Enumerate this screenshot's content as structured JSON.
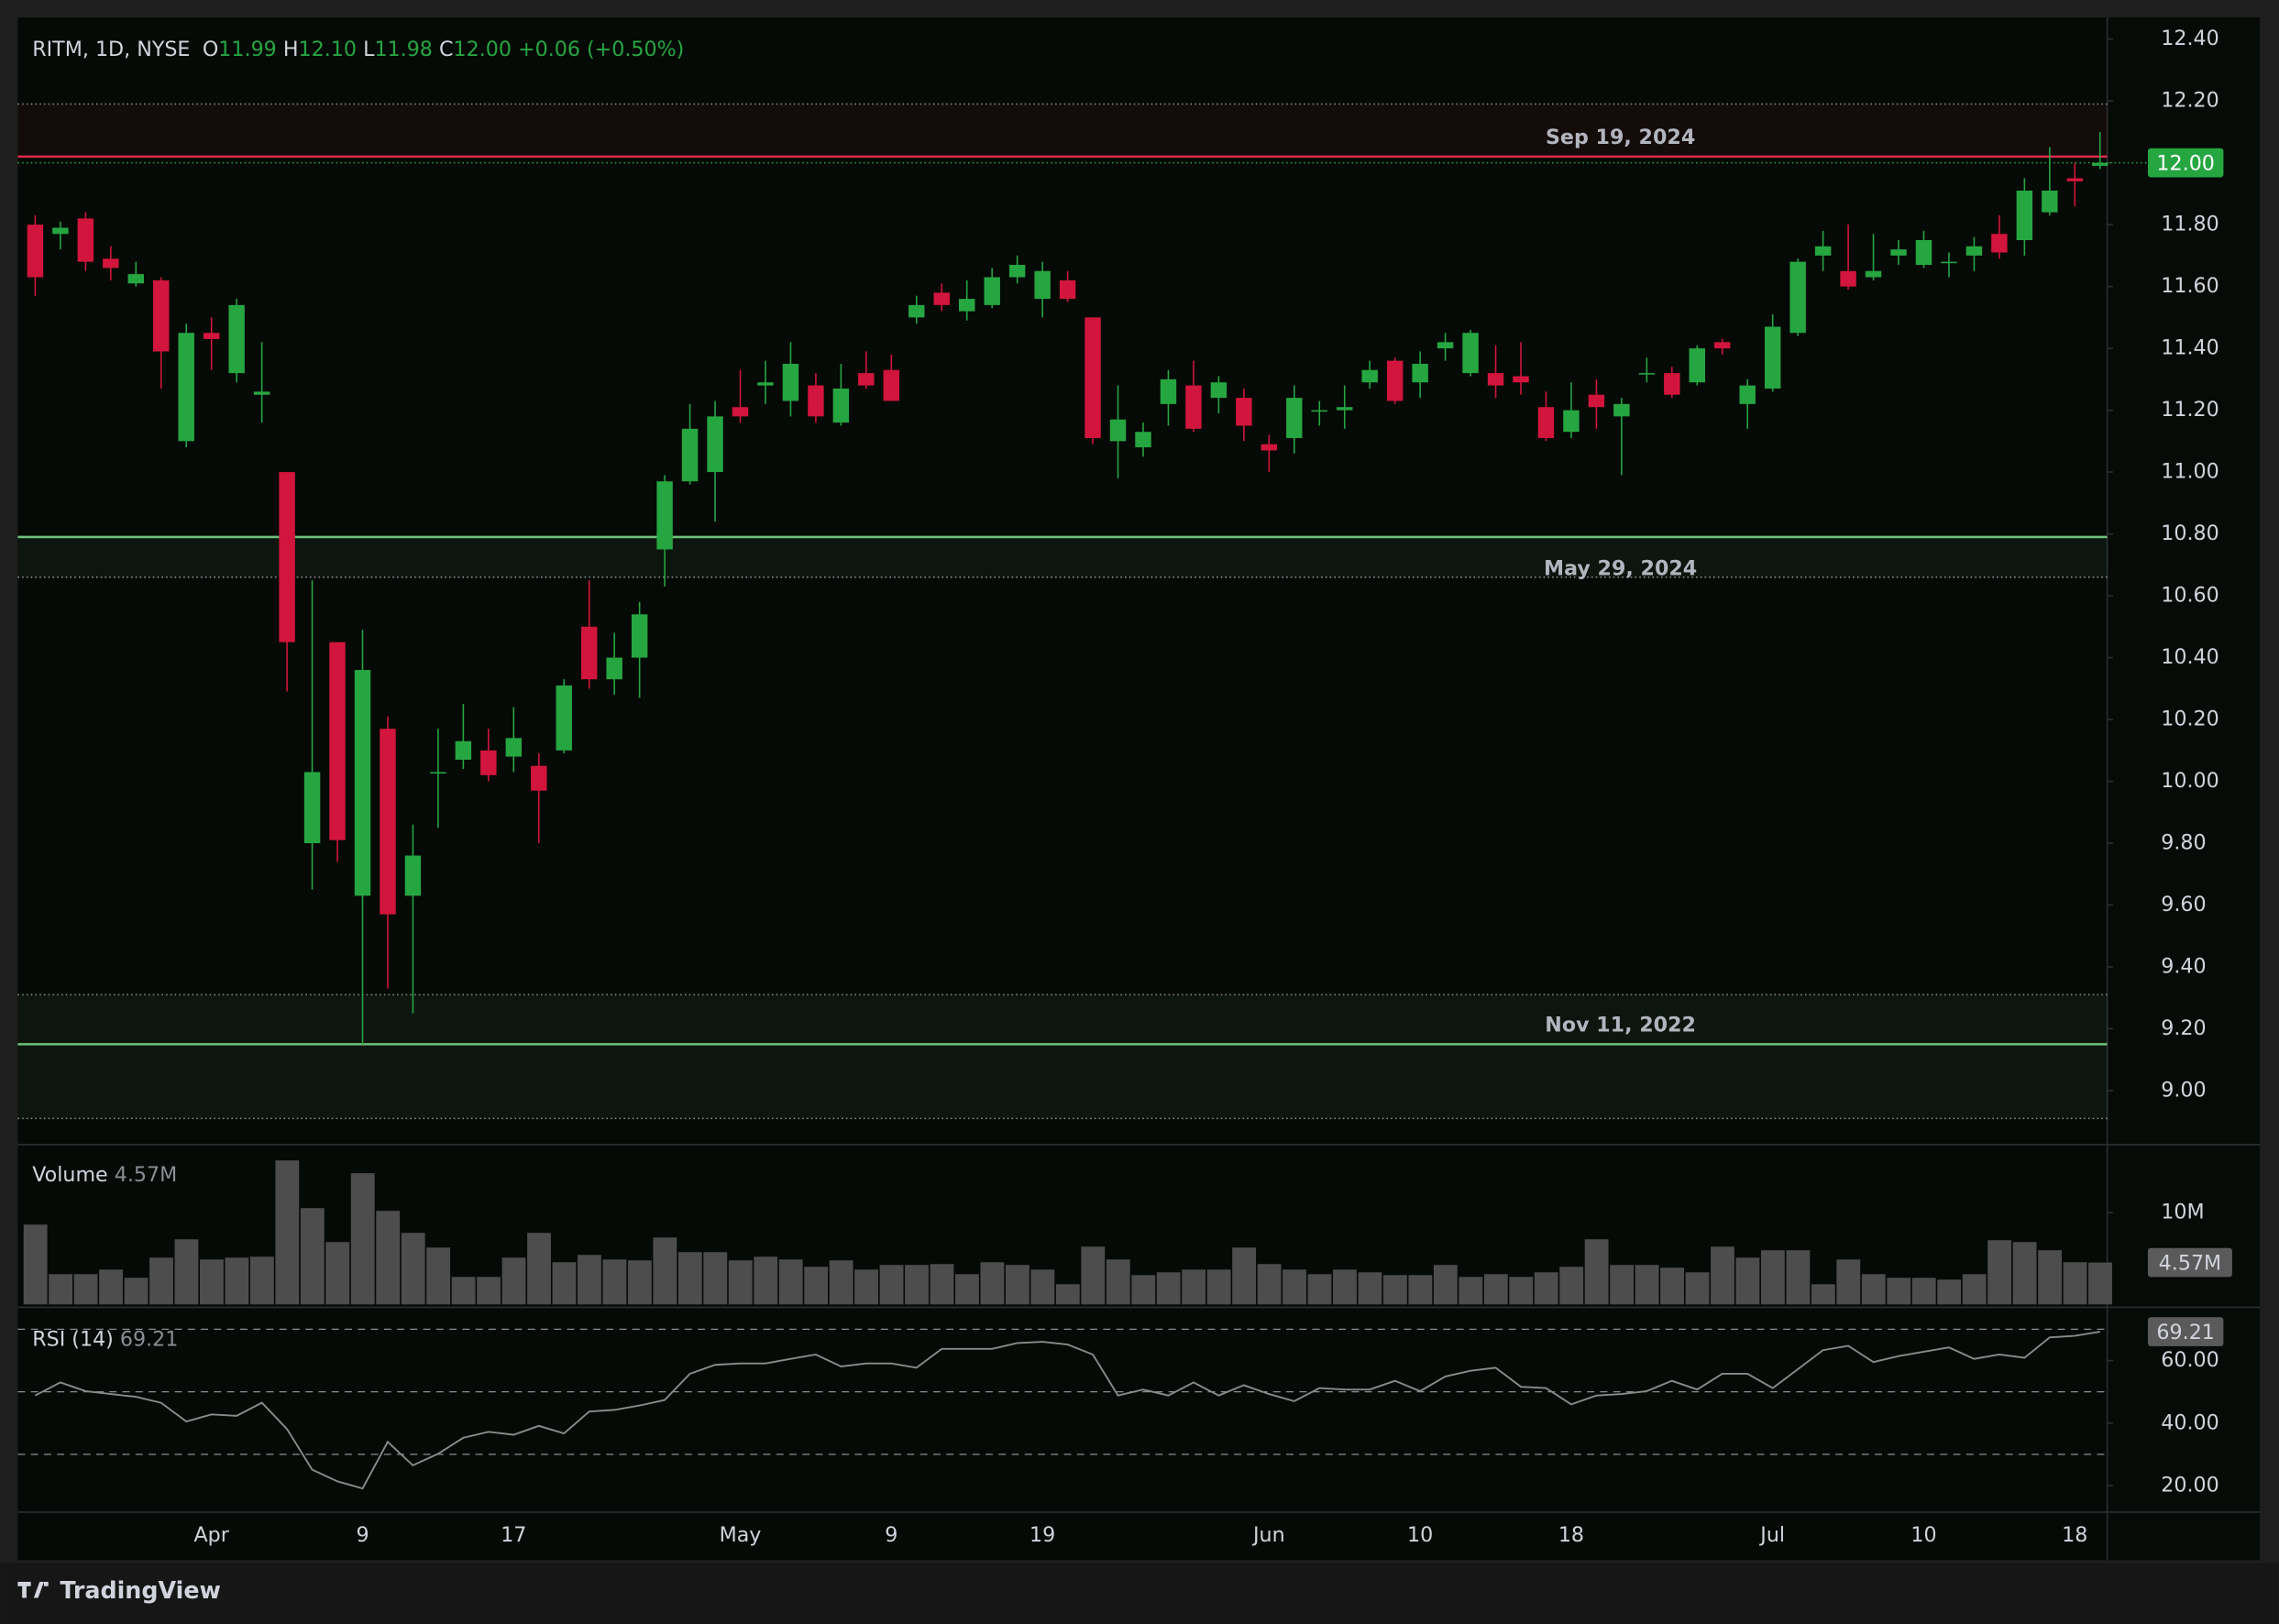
{
  "chart_data": {
    "type": "candlestick",
    "header": {
      "symbol": "RITM, 1D, NYSE",
      "quote": [
        {
          "label": "O",
          "value": "11.99"
        },
        {
          "label": "H",
          "value": "12.10"
        },
        {
          "label": "L",
          "value": "11.98"
        },
        {
          "label": "C",
          "value": "12.00"
        }
      ],
      "change": "+0.06 (+0.50%)"
    },
    "brand": "TradingView",
    "up_color": "#26a641",
    "down_color": "#d2153c",
    "categories": [
      null,
      null,
      null,
      null,
      null,
      null,
      null,
      "Apr",
      null,
      null,
      null,
      null,
      null,
      "9",
      null,
      null,
      null,
      null,
      null,
      "17",
      null,
      null,
      null,
      null,
      null,
      null,
      null,
      null,
      "May",
      null,
      null,
      null,
      null,
      null,
      "9",
      null,
      null,
      null,
      null,
      null,
      "19",
      null,
      null,
      null,
      null,
      null,
      null,
      null,
      null,
      "Jun",
      null,
      null,
      null,
      null,
      null,
      "10",
      null,
      null,
      null,
      null,
      null,
      "18",
      null,
      null,
      null,
      null,
      null,
      null,
      null,
      "Jul",
      null,
      null,
      null,
      null,
      null,
      "10",
      null,
      null,
      null,
      null,
      null,
      "18",
      null
    ],
    "open": [
      11.8,
      11.77,
      11.82,
      11.69,
      11.61,
      11.62,
      11.1,
      11.45,
      11.32,
      11.25,
      11.0,
      9.8,
      10.45,
      9.63,
      10.17,
      9.63,
      10.03,
      10.07,
      10.1,
      10.08,
      10.05,
      10.1,
      10.5,
      10.33,
      10.4,
      10.75,
      10.97,
      11.0,
      11.21,
      11.28,
      11.23,
      11.28,
      11.16,
      11.32,
      11.33,
      11.5,
      11.58,
      11.52,
      11.54,
      11.63,
      11.56,
      11.62,
      11.5,
      11.1,
      11.08,
      11.22,
      11.28,
      11.24,
      11.24,
      11.09,
      11.11,
      11.2,
      11.2,
      11.29,
      11.36,
      11.29,
      11.4,
      11.32,
      11.32,
      11.31,
      11.21,
      11.13,
      11.25,
      11.18,
      11.32,
      11.32,
      11.29,
      11.42,
      11.22,
      11.27,
      11.45,
      11.7,
      11.65,
      11.63,
      11.7,
      11.67,
      11.68,
      11.7,
      11.77,
      11.75,
      11.84,
      11.95,
      11.99
    ],
    "high": [
      11.83,
      11.81,
      11.84,
      11.73,
      11.68,
      11.63,
      11.48,
      11.5,
      11.56,
      11.42,
      11.0,
      10.65,
      10.45,
      10.49,
      10.21,
      9.86,
      10.17,
      10.25,
      10.17,
      10.24,
      10.09,
      10.33,
      10.65,
      10.48,
      10.58,
      10.99,
      11.22,
      11.23,
      11.33,
      11.36,
      11.42,
      11.32,
      11.35,
      11.39,
      11.38,
      11.57,
      11.61,
      11.62,
      11.66,
      11.7,
      11.68,
      11.65,
      11.5,
      11.28,
      11.16,
      11.33,
      11.36,
      11.31,
      11.27,
      11.12,
      11.28,
      11.23,
      11.28,
      11.36,
      11.37,
      11.39,
      11.45,
      11.46,
      11.41,
      11.42,
      11.26,
      11.29,
      11.3,
      11.24,
      11.37,
      11.34,
      11.41,
      11.43,
      11.3,
      11.51,
      11.69,
      11.78,
      11.8,
      11.77,
      11.75,
      11.78,
      11.71,
      11.76,
      11.83,
      11.95,
      12.05,
      12.0,
      12.1
    ],
    "low": [
      11.57,
      11.72,
      11.65,
      11.62,
      11.6,
      11.27,
      11.08,
      11.33,
      11.29,
      11.16,
      10.29,
      9.65,
      9.74,
      9.15,
      9.33,
      9.25,
      9.85,
      10.04,
      10.0,
      10.03,
      9.8,
      10.09,
      10.3,
      10.28,
      10.27,
      10.63,
      10.96,
      10.84,
      11.16,
      11.22,
      11.18,
      11.16,
      11.15,
      11.27,
      11.23,
      11.48,
      11.52,
      11.49,
      11.53,
      11.61,
      11.5,
      11.55,
      11.09,
      10.98,
      11.05,
      11.15,
      11.13,
      11.19,
      11.1,
      11.0,
      11.06,
      11.15,
      11.14,
      11.27,
      11.22,
      11.24,
      11.36,
      11.31,
      11.24,
      11.25,
      11.1,
      11.11,
      11.14,
      10.99,
      11.29,
      11.24,
      11.28,
      11.38,
      11.14,
      11.26,
      11.44,
      11.65,
      11.59,
      11.62,
      11.67,
      11.66,
      11.63,
      11.65,
      11.69,
      11.7,
      11.83,
      11.86,
      11.98
    ],
    "close": [
      11.63,
      11.79,
      11.68,
      11.66,
      11.64,
      11.39,
      11.45,
      11.43,
      11.54,
      11.26,
      10.45,
      10.03,
      9.81,
      10.36,
      9.57,
      9.76,
      10.03,
      10.13,
      10.02,
      10.14,
      9.97,
      10.31,
      10.33,
      10.4,
      10.54,
      10.97,
      11.14,
      11.18,
      11.18,
      11.29,
      11.35,
      11.18,
      11.27,
      11.28,
      11.23,
      11.54,
      11.54,
      11.56,
      11.63,
      11.67,
      11.65,
      11.56,
      11.11,
      11.17,
      11.13,
      11.3,
      11.14,
      11.29,
      11.15,
      11.07,
      11.24,
      11.2,
      11.21,
      11.33,
      11.23,
      11.35,
      11.42,
      11.45,
      11.28,
      11.29,
      11.11,
      11.2,
      11.21,
      11.22,
      11.32,
      11.25,
      11.4,
      11.4,
      11.28,
      11.47,
      11.68,
      11.73,
      11.6,
      11.65,
      11.72,
      11.75,
      11.68,
      11.73,
      11.71,
      11.91,
      11.91,
      11.94,
      12.0
    ],
    "last_label": "12.00",
    "ylim": [
      8.83,
      12.47
    ],
    "yticks": [
      {
        "value": 12.4,
        "label": "12.40"
      },
      {
        "value": 12.2,
        "label": "12.20"
      },
      {
        "value": 12.0,
        "label": "12.00"
      },
      {
        "value": 11.8,
        "label": "11.80"
      },
      {
        "value": 11.6,
        "label": "11.60"
      },
      {
        "value": 11.4,
        "label": "11.40"
      },
      {
        "value": 11.2,
        "label": "11.20"
      },
      {
        "value": 11.0,
        "label": "11.00"
      },
      {
        "value": 10.8,
        "label": "10.80"
      },
      {
        "value": 10.6,
        "label": "10.60"
      },
      {
        "value": 10.4,
        "label": "10.40"
      },
      {
        "value": 10.2,
        "label": "10.20"
      },
      {
        "value": 10.0,
        "label": "10.00"
      },
      {
        "value": 9.8,
        "label": "9.80"
      },
      {
        "value": 9.6,
        "label": "9.60"
      },
      {
        "value": 9.4,
        "label": "9.40"
      },
      {
        "value": 9.2,
        "label": "9.20"
      },
      {
        "value": 9.0,
        "label": "9.00"
      }
    ],
    "zones": [
      {
        "label": "Sep 19, 2024",
        "level": 12.02,
        "low": 12.02,
        "high": 12.19,
        "color": "#e0284a"
      },
      {
        "label": "May 29, 2024",
        "level": 10.79,
        "low": 10.66,
        "high": 10.79,
        "color": "#6fbf7a"
      },
      {
        "label": "Nov 11, 2022",
        "level": 9.15,
        "low": 8.91,
        "high": 9.31,
        "color": "#6fbf7a"
      }
    ],
    "volume": {
      "title": "Volume",
      "color": "#4d4d4d",
      "values": [
        8700000,
        3300000,
        3300000,
        3800000,
        2900000,
        5100000,
        7100000,
        4900000,
        5100000,
        5200000,
        15700000,
        10500000,
        6800000,
        14300000,
        10200000,
        7800000,
        6200000,
        3000000,
        3000000,
        5100000,
        7800000,
        4600000,
        5400000,
        4900000,
        4800000,
        7300000,
        5700000,
        5700000,
        4800000,
        5200000,
        4900000,
        4100000,
        4800000,
        3800000,
        4300000,
        4300000,
        4400000,
        3300000,
        4600000,
        4300000,
        3800000,
        2200000,
        6300000,
        4900000,
        3200000,
        3500000,
        3800000,
        3800000,
        6200000,
        4400000,
        3800000,
        3300000,
        3800000,
        3500000,
        3200000,
        3200000,
        4300000,
        3000000,
        3300000,
        3000000,
        3500000,
        4100000,
        7100000,
        4300000,
        4300000,
        4000000,
        3500000,
        6300000,
        5100000,
        5900000,
        5900000,
        2200000,
        4900000,
        3300000,
        2900000,
        2900000,
        2700000,
        3300000,
        7000000,
        6800000,
        5900000,
        4600000,
        4570000
      ],
      "value_labels": [
        null,
        null,
        null,
        null,
        null,
        null,
        null,
        null,
        null,
        null,
        null,
        null,
        null,
        null,
        null,
        null,
        null,
        null,
        null,
        null,
        null,
        null,
        null,
        null,
        null,
        null,
        null,
        null,
        null,
        null,
        null,
        null,
        null,
        null,
        null,
        null,
        null,
        null,
        null,
        null,
        null,
        null,
        null,
        null,
        null,
        null,
        null,
        null,
        null,
        null,
        null,
        null,
        null,
        null,
        null,
        null,
        null,
        null,
        null,
        null,
        null,
        null,
        null,
        null,
        null,
        null,
        null,
        null,
        null,
        null,
        null,
        null,
        null,
        null,
        null,
        null,
        null,
        null,
        null,
        null,
        null,
        null,
        "4.57M"
      ],
      "ylim": [
        0,
        17100000
      ],
      "yticks": [
        {
          "value": 10000000,
          "label": "10M"
        }
      ]
    },
    "rsi": {
      "title": "RSI (14)",
      "color": "#8a8a8a",
      "values": [
        48.8,
        53,
        50.2,
        49.3,
        48.4,
        46.5,
        40.5,
        42.8,
        42.3,
        46.5,
        38.1,
        25.1,
        21.4,
        19.1,
        34,
        26.5,
        30.2,
        35.3,
        37.2,
        36.3,
        39.1,
        36.7,
        43.7,
        44.2,
        45.6,
        47.4,
        55.8,
        58.6,
        59.1,
        59.1,
        60.5,
        61.9,
        58.1,
        59.1,
        59.1,
        57.7,
        63.7,
        63.7,
        63.7,
        65.6,
        66,
        65.1,
        61.9,
        48.8,
        50.7,
        48.8,
        53,
        48.8,
        52.1,
        49.3,
        47,
        51.2,
        50.7,
        50.7,
        53.5,
        50.2,
        54.9,
        56.7,
        57.7,
        51.6,
        51.2,
        46,
        48.8,
        49.3,
        50.2,
        53.5,
        50.7,
        55.8,
        55.8,
        51.2,
        57.2,
        63.3,
        64.7,
        59.5,
        61.4,
        62.8,
        64.2,
        60.5,
        61.9,
        60.9,
        67.4,
        67.9,
        69.21
      ],
      "bands": [
        70,
        50,
        30
      ],
      "ylim": [
        12,
        77
      ],
      "yticks": [
        {
          "value": 60,
          "label": "60.00"
        },
        {
          "value": 40,
          "label": "40.00"
        },
        {
          "value": 20,
          "label": "20.00"
        }
      ]
    }
  }
}
